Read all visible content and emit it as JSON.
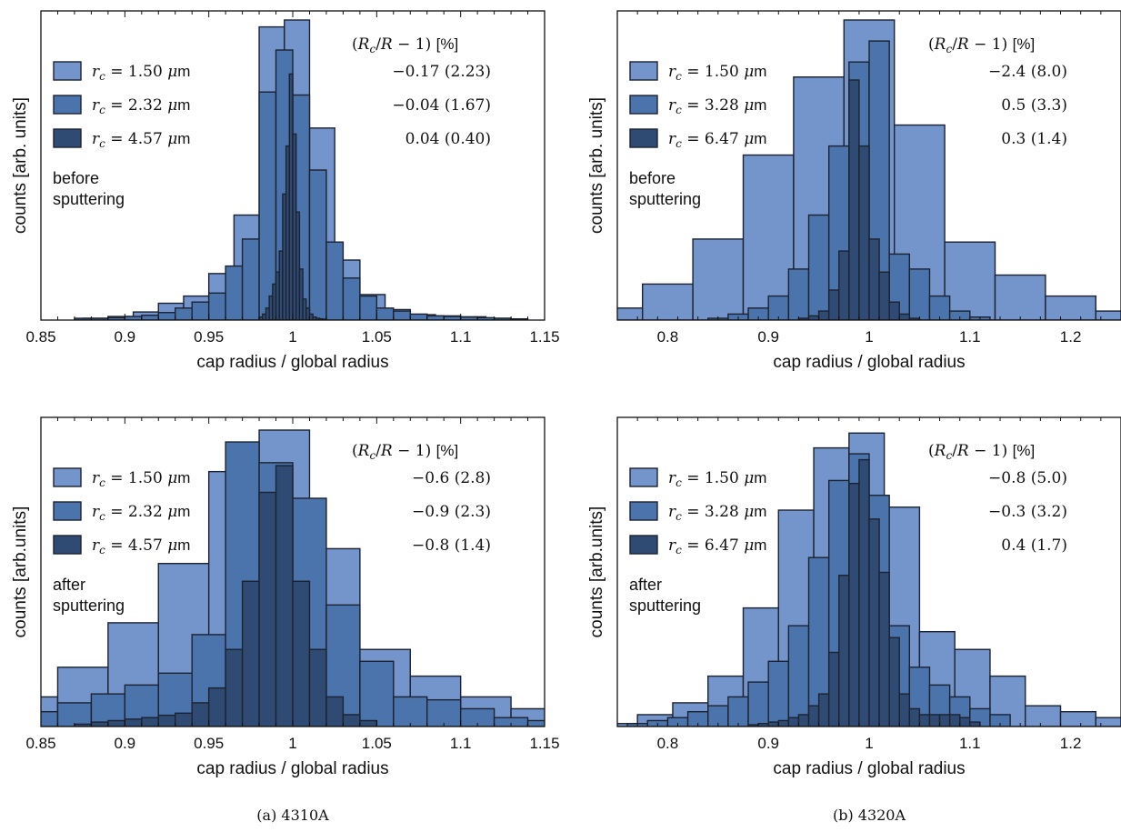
{
  "colors": {
    "c1": "#7494cc",
    "c2": "#4a74ab",
    "c3": "#2f4b74"
  },
  "captions": [
    "(a) 4310A",
    "(b) 4320A"
  ],
  "chart_data": [
    {
      "type": "bar",
      "xlabel": "cap radius / global radius",
      "ylabel": "counts [arb. units]",
      "xlim": [
        0.85,
        1.15
      ],
      "ylim": [
        0,
        1
      ],
      "xticks": [
        "0.85",
        "0.9",
        "0.95",
        "1",
        "1.05",
        "1.1",
        "1.15"
      ],
      "xtick_values": [
        0.85,
        0.9,
        0.95,
        1.0,
        1.05,
        1.1,
        1.15
      ],
      "legend_header": "(R_c/R − 1) [%]",
      "annotation": [
        "before",
        "sputtering"
      ],
      "series": [
        {
          "name": "r_c = 1.50 μm",
          "stat": "−0.17 (2.23)",
          "color": "#7494cc",
          "edges": [
            0.875,
            0.89,
            0.905,
            0.92,
            0.935,
            0.95,
            0.965,
            0.98,
            0.995,
            1.01,
            1.025,
            1.04,
            1.055,
            1.07,
            1.085,
            1.1,
            1.115,
            1.13
          ],
          "values": [
            0.006,
            0.012,
            0.027,
            0.056,
            0.08,
            0.155,
            0.35,
            0.977,
            1.0,
            0.64,
            0.2,
            0.085,
            0.035,
            0.018,
            0.014,
            0.011,
            0.006
          ]
        },
        {
          "name": "r_c = 2.32 μm",
          "stat": "−0.04 (1.67)",
          "color": "#4a74ab",
          "edges": [
            0.87,
            0.88,
            0.89,
            0.9,
            0.91,
            0.92,
            0.93,
            0.94,
            0.95,
            0.96,
            0.97,
            0.98,
            0.99,
            1.0,
            1.01,
            1.02,
            1.03,
            1.04,
            1.05,
            1.06,
            1.07,
            1.08,
            1.09,
            1.1,
            1.11,
            1.12,
            1.13,
            1.14
          ],
          "values": [
            0.006,
            0.006,
            0.008,
            0.012,
            0.016,
            0.025,
            0.04,
            0.06,
            0.09,
            0.18,
            0.27,
            0.76,
            0.9,
            0.75,
            0.5,
            0.26,
            0.14,
            0.08,
            0.04,
            0.03,
            0.02,
            0.014,
            0.012,
            0.01,
            0.008,
            0.006,
            0.004
          ]
        },
        {
          "name": "r_c = 4.57 μm",
          "stat": "0.04 (0.40)",
          "color": "#2f4b74",
          "edges": [
            0.98,
            0.982,
            0.984,
            0.986,
            0.988,
            0.99,
            0.992,
            0.994,
            0.996,
            0.998,
            1.0,
            1.002,
            1.004,
            1.006,
            1.008,
            1.01,
            1.012,
            1.014,
            1.016,
            1.018,
            1.02
          ],
          "values": [
            0.01,
            0.02,
            0.04,
            0.08,
            0.12,
            0.16,
            0.23,
            0.42,
            0.58,
            0.82,
            0.62,
            0.36,
            0.17,
            0.07,
            0.04,
            0.02,
            0.01,
            0.006,
            0.004,
            0.003
          ]
        }
      ]
    },
    {
      "type": "bar",
      "xlabel": "cap radius / global radius",
      "ylabel": "counts [arb. units]",
      "xlim": [
        0.75,
        1.25
      ],
      "ylim": [
        0,
        1
      ],
      "xticks": [
        "0.8",
        "0.9",
        "1",
        "1.1",
        "1.2"
      ],
      "xtick_values": [
        0.8,
        0.9,
        1.0,
        1.1,
        1.2
      ],
      "legend_header": "(R_c/R − 1) [%]",
      "annotation": [
        "before",
        "sputtering"
      ],
      "series": [
        {
          "name": "r_c = 1.50 μm",
          "stat": "−2.4 (8.0)",
          "color": "#7494cc",
          "edges": [
            0.725,
            0.775,
            0.825,
            0.875,
            0.925,
            0.975,
            1.025,
            1.075,
            1.125,
            1.175,
            1.225,
            1.275
          ],
          "values": [
            0.04,
            0.12,
            0.27,
            0.55,
            0.81,
            1.0,
            0.65,
            0.26,
            0.15,
            0.08,
            0.03
          ]
        },
        {
          "name": "r_c = 3.28 μm",
          "stat": "0.5 (3.3)",
          "color": "#4a74ab",
          "edges": [
            0.84,
            0.86,
            0.88,
            0.9,
            0.92,
            0.94,
            0.96,
            0.98,
            1.0,
            1.02,
            1.04,
            1.06,
            1.08,
            1.1,
            1.12
          ],
          "values": [
            0.006,
            0.02,
            0.04,
            0.08,
            0.17,
            0.35,
            0.58,
            0.86,
            0.93,
            0.22,
            0.17,
            0.08,
            0.03,
            0.01
          ]
        },
        {
          "name": "r_c = 6.47 μm",
          "stat": "0.3 (1.4)",
          "color": "#2f4b74",
          "edges": [
            0.93,
            0.94,
            0.95,
            0.96,
            0.97,
            0.98,
            0.99,
            1.0,
            1.01,
            1.02,
            1.03,
            1.04,
            1.05
          ],
          "values": [
            0.006,
            0.014,
            0.03,
            0.1,
            0.23,
            0.8,
            0.58,
            0.27,
            0.16,
            0.06,
            0.02,
            0.006
          ]
        }
      ]
    },
    {
      "type": "bar",
      "xlabel": "cap radius / global radius",
      "ylabel": "counts [arb.units]",
      "xlim": [
        0.85,
        1.15
      ],
      "ylim": [
        0,
        1
      ],
      "xticks": [
        "0.85",
        "0.9",
        "0.95",
        "1",
        "1.05",
        "1.1",
        "1.15"
      ],
      "xtick_values": [
        0.85,
        0.9,
        0.95,
        1.0,
        1.05,
        1.1,
        1.15
      ],
      "legend_header": "(R_c/R − 1) [%]",
      "annotation": [
        "after",
        "sputtering"
      ],
      "series": [
        {
          "name": "r_c = 1.50 μm",
          "stat": "−0.6 (2.8)",
          "color": "#7494cc",
          "edges": [
            0.8,
            0.83,
            0.86,
            0.89,
            0.92,
            0.95,
            0.98,
            1.01,
            1.04,
            1.07,
            1.1,
            1.13,
            1.16
          ],
          "values": [
            0.01,
            0.1,
            0.2,
            0.35,
            0.55,
            0.86,
            1.0,
            0.6,
            0.26,
            0.17,
            0.1,
            0.06
          ]
        },
        {
          "name": "r_c = 2.32 μm",
          "stat": "−0.9 (2.3)",
          "color": "#4a74ab",
          "edges": [
            0.82,
            0.84,
            0.86,
            0.88,
            0.9,
            0.92,
            0.94,
            0.96,
            0.98,
            1.0,
            1.02,
            1.04,
            1.06,
            1.08,
            1.1,
            1.12,
            1.14,
            1.16
          ],
          "values": [
            0.02,
            0.05,
            0.08,
            0.11,
            0.14,
            0.18,
            0.31,
            0.96,
            0.89,
            0.77,
            0.41,
            0.22,
            0.1,
            0.09,
            0.06,
            0.03,
            0.02
          ]
        },
        {
          "name": "r_c = 4.57 μm",
          "stat": "−0.8 (1.4)",
          "color": "#2f4b74",
          "edges": [
            0.87,
            0.88,
            0.89,
            0.9,
            0.91,
            0.92,
            0.93,
            0.94,
            0.95,
            0.96,
            0.97,
            0.98,
            0.99,
            1.0,
            1.01,
            1.02,
            1.03,
            1.04,
            1.05
          ],
          "values": [
            0.008,
            0.015,
            0.02,
            0.025,
            0.03,
            0.038,
            0.045,
            0.08,
            0.13,
            0.26,
            0.49,
            0.79,
            0.88,
            0.49,
            0.26,
            0.1,
            0.04,
            0.02
          ]
        }
      ]
    },
    {
      "type": "bar",
      "xlabel": "cap radius / global radius",
      "ylabel": "counts [arb.units]",
      "xlim": [
        0.75,
        1.25
      ],
      "ylim": [
        0,
        1
      ],
      "xticks": [
        "0.8",
        "0.9",
        "1",
        "1.1",
        "1.2"
      ],
      "xtick_values": [
        0.8,
        0.9,
        1.0,
        1.1,
        1.2
      ],
      "legend_header": "(R_c/R − 1) [%]",
      "annotation": [
        "after",
        "sputtering"
      ],
      "series": [
        {
          "name": "r_c = 1.50 μm",
          "stat": "−0.8 (5.0)",
          "color": "#7494cc",
          "edges": [
            0.7,
            0.735,
            0.77,
            0.805,
            0.84,
            0.875,
            0.91,
            0.945,
            0.98,
            1.015,
            1.05,
            1.085,
            1.12,
            1.155,
            1.19,
            1.225,
            1.26
          ],
          "values": [
            0.006,
            0.01,
            0.04,
            0.08,
            0.17,
            0.4,
            0.73,
            0.94,
            0.99,
            0.74,
            0.32,
            0.26,
            0.17,
            0.07,
            0.05,
            0.03
          ]
        },
        {
          "name": "r_c = 3.28 μm",
          "stat": "−0.3 (3.2)",
          "color": "#4a74ab",
          "edges": [
            0.76,
            0.78,
            0.8,
            0.82,
            0.84,
            0.86,
            0.88,
            0.9,
            0.92,
            0.94,
            0.96,
            0.98,
            1.0,
            1.02,
            1.04,
            1.06,
            1.08,
            1.1,
            1.12,
            1.14
          ],
          "values": [
            0.01,
            0.02,
            0.03,
            0.05,
            0.07,
            0.1,
            0.15,
            0.22,
            0.34,
            0.57,
            0.83,
            0.92,
            0.78,
            0.34,
            0.2,
            0.14,
            0.1,
            0.06,
            0.04
          ]
        },
        {
          "name": "r_c = 6.47 μm",
          "stat": "0.4 (1.7)",
          "color": "#2f4b74",
          "edges": [
            0.88,
            0.89,
            0.9,
            0.91,
            0.92,
            0.93,
            0.94,
            0.95,
            0.96,
            0.97,
            0.98,
            0.99,
            1.0,
            1.01,
            1.02,
            1.03,
            1.04,
            1.05,
            1.06,
            1.07,
            1.08,
            1.09,
            1.1,
            1.11
          ],
          "values": [
            0.006,
            0.01,
            0.015,
            0.02,
            0.03,
            0.04,
            0.07,
            0.11,
            0.25,
            0.51,
            0.82,
            0.9,
            0.7,
            0.52,
            0.3,
            0.11,
            0.06,
            0.04,
            0.04,
            0.04,
            0.04,
            0.03,
            0.015
          ]
        }
      ]
    }
  ]
}
